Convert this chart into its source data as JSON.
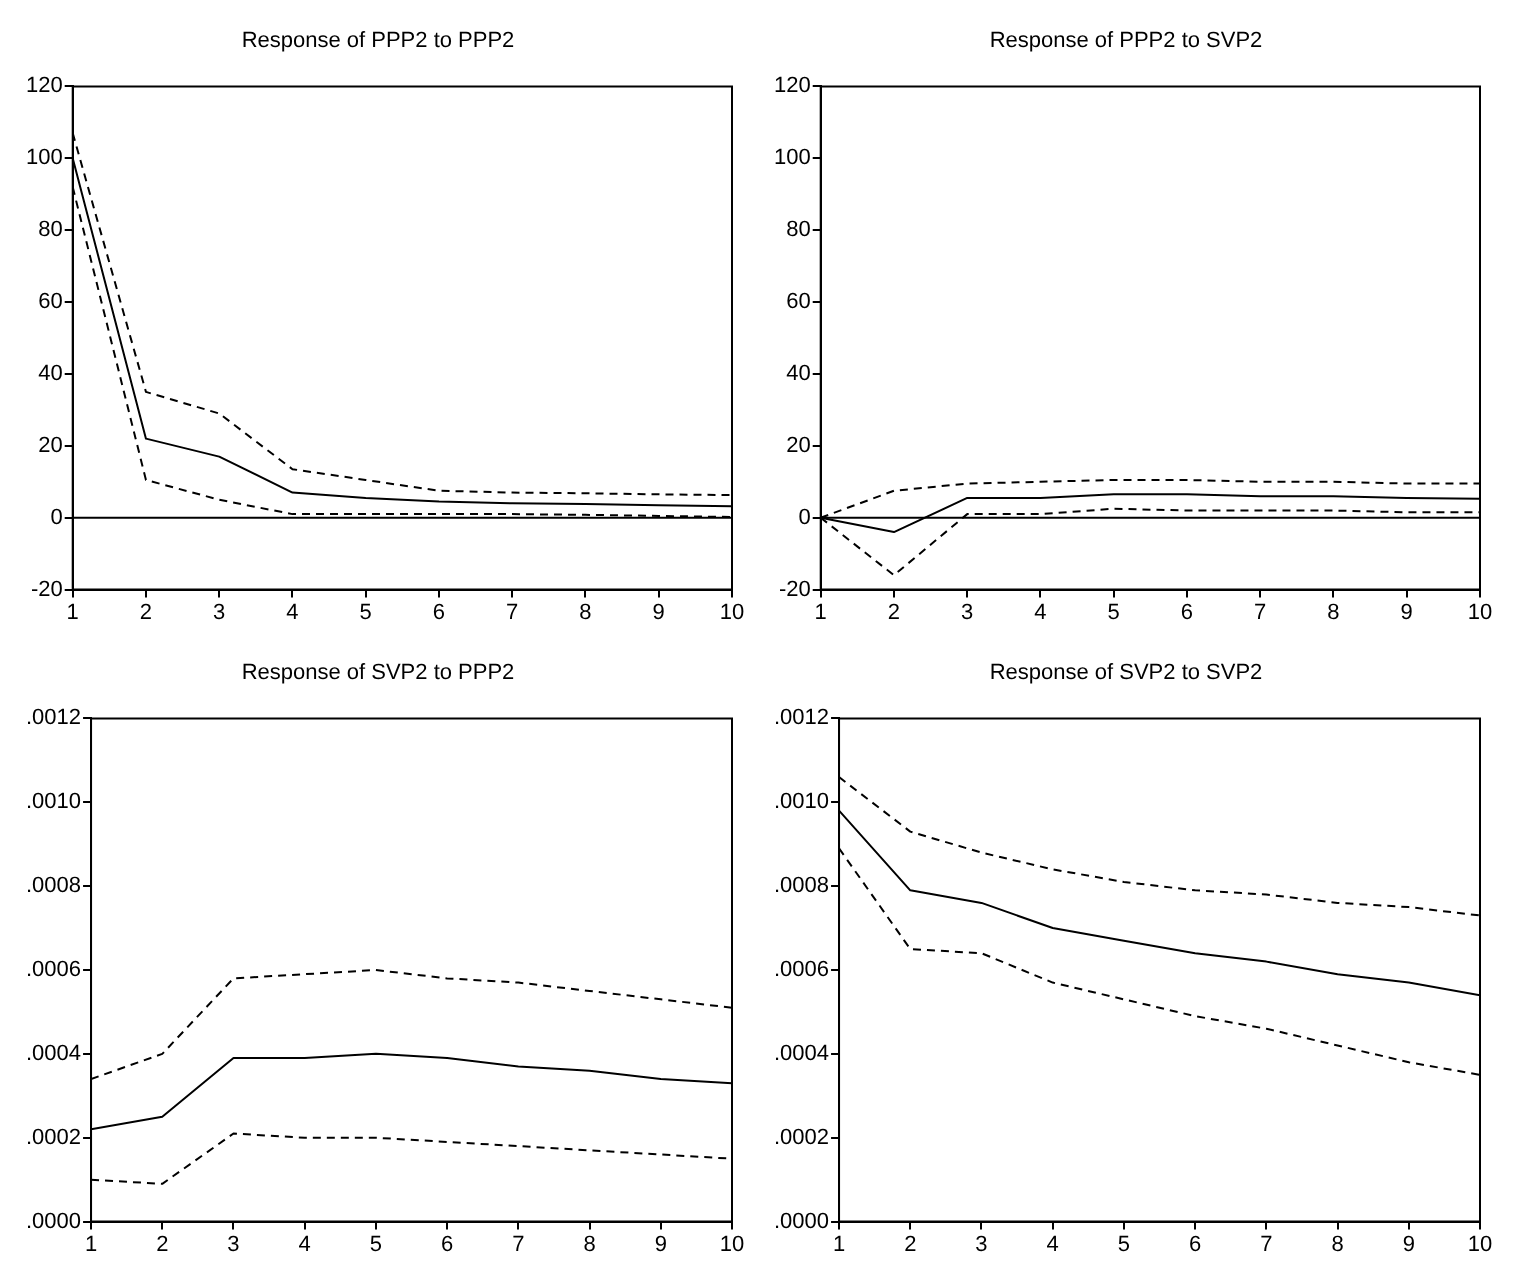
{
  "chart_data": [
    {
      "type": "line",
      "title": "Response of PPP2 to PPP2",
      "x": [
        1,
        2,
        3,
        4,
        5,
        6,
        7,
        8,
        9,
        10
      ],
      "xlim": [
        1,
        10
      ],
      "xticks": [
        1,
        2,
        3,
        4,
        5,
        6,
        7,
        8,
        9,
        10
      ],
      "ylim": [
        -20,
        120
      ],
      "yticks": [
        -20,
        0,
        20,
        40,
        60,
        80,
        100,
        120
      ],
      "grid": false,
      "legend": false,
      "marker": "none",
      "ref_lines": [
        {
          "axis": "y",
          "value": 0,
          "color": "#000000",
          "line_style": "solid"
        }
      ],
      "series": [
        {
          "color": "#000000",
          "line_style": "solid",
          "values": [
            100,
            22,
            17,
            7,
            5.5,
            4.5,
            4,
            3.8,
            3.5,
            3.2
          ]
        },
        {
          "color": "#000000",
          "line_style": "dashed",
          "values": [
            107,
            35,
            29,
            13.5,
            10.5,
            7.5,
            7,
            6.8,
            6.5,
            6.3
          ]
        },
        {
          "color": "#000000",
          "line_style": "dashed",
          "values": [
            92,
            10.5,
            5,
            1,
            1,
            1,
            1,
            0.8,
            0.5,
            0.2
          ]
        }
      ]
    },
    {
      "type": "line",
      "title": "Response of PPP2 to SVP2",
      "x": [
        1,
        2,
        3,
        4,
        5,
        6,
        7,
        8,
        9,
        10
      ],
      "xlim": [
        1,
        10
      ],
      "xticks": [
        1,
        2,
        3,
        4,
        5,
        6,
        7,
        8,
        9,
        10
      ],
      "ylim": [
        -20,
        120
      ],
      "yticks": [
        -20,
        0,
        20,
        40,
        60,
        80,
        100,
        120
      ],
      "grid": false,
      "legend": false,
      "marker": "none",
      "ref_lines": [
        {
          "axis": "y",
          "value": 0,
          "color": "#000000",
          "line_style": "solid"
        }
      ],
      "series": [
        {
          "color": "#000000",
          "line_style": "solid",
          "values": [
            0,
            -4,
            5.5,
            5.5,
            6.5,
            6.5,
            6,
            6,
            5.5,
            5.3
          ]
        },
        {
          "color": "#000000",
          "line_style": "dashed",
          "values": [
            0,
            7.5,
            9.5,
            10,
            10.5,
            10.5,
            10,
            10,
            9.5,
            9.5
          ]
        },
        {
          "color": "#000000",
          "line_style": "dashed",
          "values": [
            0,
            -16,
            1,
            1,
            2.5,
            2,
            2,
            2,
            1.5,
            1.5
          ]
        }
      ]
    },
    {
      "type": "line",
      "title": "Response of SVP2 to PPP2",
      "x": [
        1,
        2,
        3,
        4,
        5,
        6,
        7,
        8,
        9,
        10
      ],
      "xlim": [
        1,
        10
      ],
      "xticks": [
        1,
        2,
        3,
        4,
        5,
        6,
        7,
        8,
        9,
        10
      ],
      "ylim": [
        0,
        0.0012
      ],
      "yticks": [
        {
          "value": 0,
          "label": ".0000"
        },
        {
          "value": 0.0002,
          "label": ".0002"
        },
        {
          "value": 0.0004,
          "label": ".0004"
        },
        {
          "value": 0.0006,
          "label": ".0006"
        },
        {
          "value": 0.0008,
          "label": ".0008"
        },
        {
          "value": 0.001,
          "label": ".0010"
        },
        {
          "value": 0.0012,
          "label": ".0012"
        }
      ],
      "grid": false,
      "legend": false,
      "marker": "none",
      "series": [
        {
          "color": "#000000",
          "line_style": "solid",
          "values": [
            0.00022,
            0.00025,
            0.00039,
            0.00039,
            0.0004,
            0.00039,
            0.00037,
            0.00036,
            0.00034,
            0.00033
          ]
        },
        {
          "color": "#000000",
          "line_style": "dashed",
          "values": [
            0.00034,
            0.0004,
            0.00058,
            0.00059,
            0.0006,
            0.00058,
            0.00057,
            0.00055,
            0.00053,
            0.00051
          ]
        },
        {
          "color": "#000000",
          "line_style": "dashed",
          "values": [
            0.0001,
            9e-05,
            0.00021,
            0.0002,
            0.0002,
            0.00019,
            0.00018,
            0.00017,
            0.00016,
            0.00015
          ]
        }
      ]
    },
    {
      "type": "line",
      "title": "Response of SVP2 to SVP2",
      "x": [
        1,
        2,
        3,
        4,
        5,
        6,
        7,
        8,
        9,
        10
      ],
      "xlim": [
        1,
        10
      ],
      "xticks": [
        1,
        2,
        3,
        4,
        5,
        6,
        7,
        8,
        9,
        10
      ],
      "ylim": [
        0,
        0.0012
      ],
      "yticks": [
        {
          "value": 0,
          "label": ".0000"
        },
        {
          "value": 0.0002,
          "label": ".0002"
        },
        {
          "value": 0.0004,
          "label": ".0004"
        },
        {
          "value": 0.0006,
          "label": ".0006"
        },
        {
          "value": 0.0008,
          "label": ".0008"
        },
        {
          "value": 0.001,
          "label": ".0010"
        },
        {
          "value": 0.0012,
          "label": ".0012"
        }
      ],
      "grid": false,
      "legend": false,
      "marker": "none",
      "series": [
        {
          "color": "#000000",
          "line_style": "solid",
          "values": [
            0.00098,
            0.00079,
            0.00076,
            0.0007,
            0.00067,
            0.00064,
            0.00062,
            0.00059,
            0.00057,
            0.00054
          ]
        },
        {
          "color": "#000000",
          "line_style": "dashed",
          "values": [
            0.00106,
            0.00093,
            0.00088,
            0.00084,
            0.00081,
            0.00079,
            0.00078,
            0.00076,
            0.00075,
            0.00073
          ]
        },
        {
          "color": "#000000",
          "line_style": "dashed",
          "values": [
            0.00089,
            0.00065,
            0.00064,
            0.00057,
            0.00053,
            0.00049,
            0.00046,
            0.00042,
            0.00038,
            0.00035
          ]
        }
      ]
    }
  ]
}
